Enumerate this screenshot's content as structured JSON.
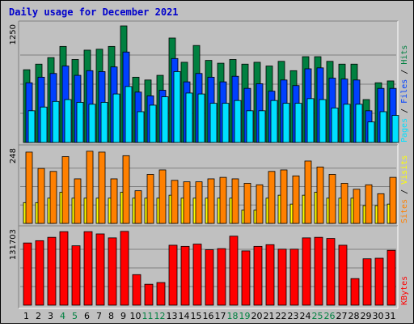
{
  "chart_data": {
    "type": "bar",
    "title": "Daily usage for December 2021",
    "categories": [
      "1",
      "2",
      "3",
      "4",
      "5",
      "6",
      "7",
      "8",
      "9",
      "10",
      "11",
      "12",
      "13",
      "14",
      "15",
      "16",
      "17",
      "18",
      "19",
      "20",
      "21",
      "22",
      "23",
      "24",
      "25",
      "26",
      "27",
      "28",
      "29",
      "30",
      "31"
    ],
    "weekend_days": [
      "4",
      "5",
      "11",
      "12",
      "18",
      "19",
      "25",
      "26"
    ],
    "panels": [
      {
        "name": "hits_files_pages",
        "max_label": "1250",
        "ymax": 1250,
        "legend": [
          "Pages",
          "Files",
          "Hits"
        ],
        "series": [
          {
            "name": "Hits",
            "color": "#008040",
            "values": [
              780,
              840,
              910,
              1030,
              890,
              990,
              1000,
              1030,
              1250,
              700,
              670,
              720,
              1120,
              860,
              1040,
              880,
              850,
              890,
              840,
              860,
              820,
              870,
              770,
              920,
              920,
              870,
              840,
              840,
              460,
              640,
              660
            ]
          },
          {
            "name": "Files",
            "color": "#0040ff",
            "values": [
              640,
              700,
              740,
              820,
              720,
              770,
              760,
              810,
              970,
              540,
              500,
              560,
              900,
              650,
              740,
              700,
              650,
              710,
              580,
              630,
              550,
              670,
              610,
              790,
              800,
              690,
              680,
              670,
              340,
              580,
              580
            ]
          },
          {
            "name": "Pages",
            "color": "#00e0ff",
            "values": [
              340,
              380,
              440,
              460,
              430,
              410,
              430,
              520,
              600,
              330,
              400,
              490,
              760,
              530,
              520,
              420,
              420,
              450,
              340,
              340,
              450,
              420,
              420,
              470,
              460,
              370,
              410,
              410,
              220,
              330,
              290
            ]
          }
        ]
      },
      {
        "name": "visits_sites",
        "max_label": "248",
        "ymax": 248,
        "legend": [
          "Sites",
          "Visits"
        ],
        "series": [
          {
            "name": "Visits",
            "color": "#ffff00",
            "values": [
              70,
              70,
              85,
              105,
              85,
              85,
              85,
              85,
              105,
              85,
              85,
              85,
              95,
              85,
              85,
              85,
              85,
              85,
              45,
              45,
              85,
              95,
              65,
              95,
              105,
              85,
              85,
              85,
              60,
              60,
              65
            ]
          },
          {
            "name": "Sites",
            "color": "#ff8000",
            "values": [
              240,
              185,
              175,
              225,
              150,
              243,
              240,
              150,
              228,
              110,
              165,
              180,
              145,
              140,
              140,
              150,
              155,
              150,
              135,
              130,
              175,
              180,
              160,
              210,
              190,
              165,
              135,
              115,
              130,
              100,
              155
            ]
          }
        ]
      },
      {
        "name": "kbytes",
        "max_label": "131703",
        "ymax": 131703,
        "legend": [
          "KBytes"
        ],
        "series": [
          {
            "name": "KBytes",
            "color": "#ff0000",
            "values": [
              110000,
              114000,
              120000,
              130000,
              105000,
              130000,
              126000,
              119000,
              130500,
              54000,
              37000,
              40000,
              106000,
              104000,
              108000,
              98000,
              100000,
              122000,
              96000,
              104000,
              107000,
              99000,
              99000,
              119000,
              120000,
              118000,
              106000,
              47000,
              82000,
              83000,
              97000
            ]
          }
        ]
      }
    ]
  }
}
